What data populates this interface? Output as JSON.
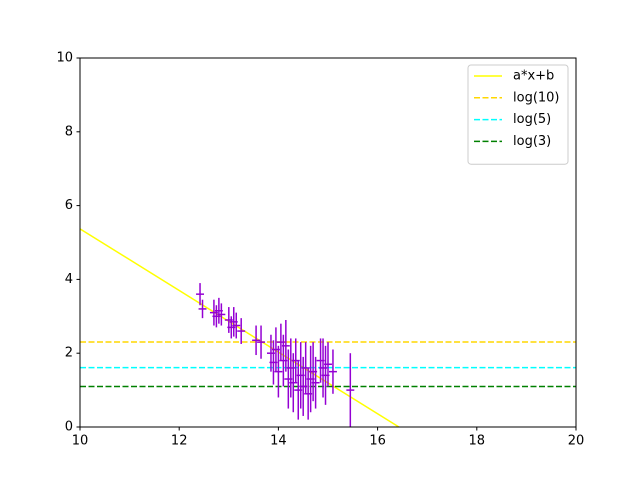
{
  "chart_data": {
    "type": "errorbar",
    "xlim": [
      10,
      20
    ],
    "ylim": [
      0,
      10
    ],
    "xticks": [
      10,
      12,
      14,
      16,
      18,
      20
    ],
    "yticks": [
      0,
      2,
      4,
      6,
      8,
      10
    ],
    "legend": "upper right",
    "lines": [
      {
        "name": "a*x+b",
        "color": "#ffff00",
        "style": "solid",
        "x": [
          10,
          16.43
        ],
        "values": [
          5.37,
          0
        ]
      }
    ],
    "hlines": [
      {
        "name": "log(10)",
        "color": "#ffd700",
        "style": "dashed",
        "value": 2.303
      },
      {
        "name": "log(5)",
        "color": "#00ffff",
        "style": "dashed",
        "value": 1.609
      },
      {
        "name": "log(3)",
        "color": "#008000",
        "style": "dashed",
        "value": 1.099
      }
    ],
    "points": {
      "color": "#9400d3",
      "x": [
        12.42,
        12.47,
        12.7,
        12.75,
        12.8,
        12.85,
        13.0,
        13.05,
        13.1,
        13.15,
        13.25,
        13.55,
        13.65,
        13.85,
        13.9,
        13.95,
        14.0,
        14.05,
        14.1,
        14.15,
        14.2,
        14.25,
        14.3,
        14.35,
        14.4,
        14.45,
        14.5,
        14.55,
        14.6,
        14.65,
        14.7,
        14.75,
        14.85,
        14.9,
        14.95,
        15.0,
        15.1,
        15.45
      ],
      "values": [
        3.6,
        3.2,
        3.1,
        3.0,
        3.15,
        3.05,
        2.9,
        2.7,
        2.85,
        2.75,
        2.6,
        2.35,
        2.3,
        2.0,
        1.75,
        2.1,
        1.5,
        2.3,
        1.8,
        2.2,
        1.3,
        1.6,
        1.2,
        1.8,
        1.0,
        1.4,
        1.1,
        1.6,
        0.9,
        1.3,
        1.5,
        1.2,
        1.8,
        1.6,
        1.4,
        1.7,
        1.5,
        1.0
      ],
      "xerr": [
        0.08,
        0.08,
        0.08,
        0.08,
        0.08,
        0.08,
        0.08,
        0.08,
        0.08,
        0.08,
        0.08,
        0.08,
        0.08,
        0.08,
        0.08,
        0.08,
        0.08,
        0.08,
        0.08,
        0.08,
        0.08,
        0.08,
        0.08,
        0.08,
        0.08,
        0.08,
        0.08,
        0.08,
        0.08,
        0.08,
        0.08,
        0.08,
        0.08,
        0.08,
        0.08,
        0.08,
        0.08,
        0.08
      ],
      "yerr": [
        0.3,
        0.25,
        0.35,
        0.3,
        0.35,
        0.3,
        0.35,
        0.3,
        0.4,
        0.35,
        0.35,
        0.4,
        0.45,
        0.5,
        0.6,
        0.6,
        0.7,
        0.5,
        0.7,
        0.7,
        0.8,
        0.8,
        0.8,
        0.6,
        0.8,
        0.9,
        0.8,
        0.7,
        0.7,
        0.9,
        0.8,
        0.7,
        0.6,
        0.8,
        0.8,
        0.6,
        0.6,
        1.0
      ]
    }
  }
}
